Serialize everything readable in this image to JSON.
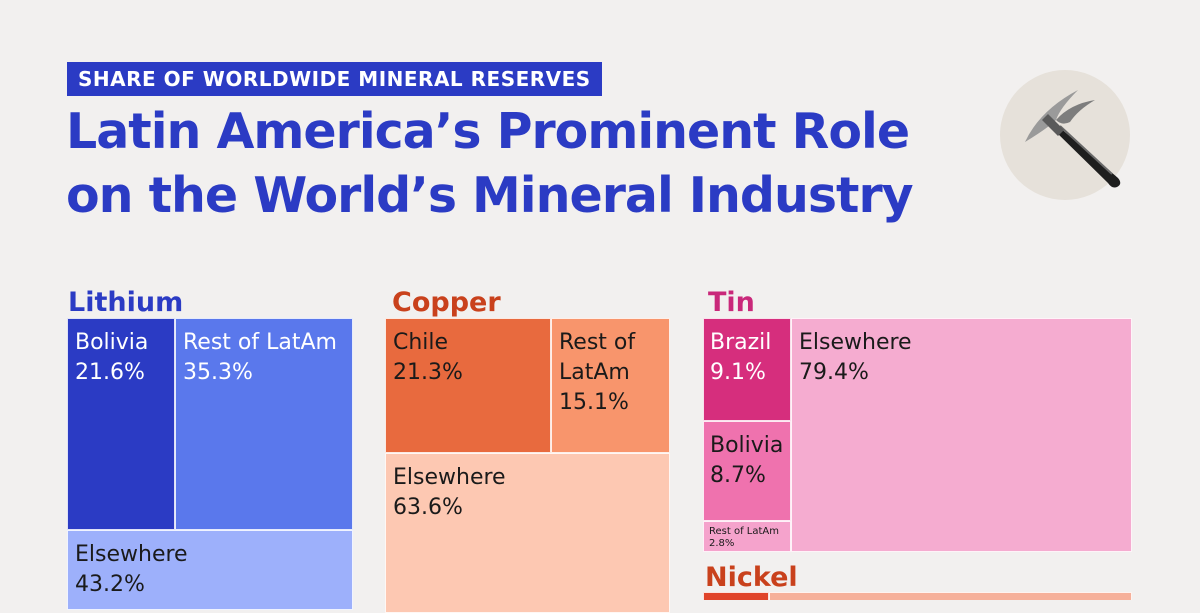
{
  "header": {
    "kicker": "SHARE OF WORLDWIDE MINERAL RESERVES",
    "title_line1": "Latin America’s Prominent Role",
    "title_line2": "on the World’s Mineral Industry",
    "icon": "pickaxe-icon"
  },
  "colors": {
    "title_blue": "#2b3bc4",
    "lithium": "#2b3bc4",
    "copper": "#c9411c",
    "tin": "#c9287a",
    "nickel": "#c9411c"
  },
  "chart_data": [
    {
      "type": "treemap",
      "title": "Lithium",
      "unit": "%",
      "items": [
        {
          "label": "Bolivia",
          "value": 21.6,
          "display": "21.6%",
          "color": "#2b3bc4"
        },
        {
          "label": "Rest of LatAm",
          "value": 35.3,
          "display": "35.3%",
          "color": "#5a78ec"
        },
        {
          "label": "Elsewhere",
          "value": 43.2,
          "display": "43.2%",
          "color": "#9db0fb"
        }
      ]
    },
    {
      "type": "treemap",
      "title": "Copper",
      "unit": "%",
      "items": [
        {
          "label": "Chile",
          "value": 21.3,
          "display": "21.3%",
          "color": "#e86a3e"
        },
        {
          "label": "Rest of LatAm",
          "label_lines": [
            "Rest of",
            "LatAm"
          ],
          "value": 15.1,
          "display": "15.1%",
          "color": "#f8956c"
        },
        {
          "label": "Elsewhere",
          "value": 63.6,
          "display": "63.6%",
          "color": "#fdc8b2"
        }
      ]
    },
    {
      "type": "treemap",
      "title": "Tin",
      "unit": "%",
      "items": [
        {
          "label": "Brazil",
          "value": 9.1,
          "display": "9.1%",
          "color": "#d62e7d"
        },
        {
          "label": "Bolivia",
          "value": 8.7,
          "display": "8.7%",
          "color": "#ef72ae"
        },
        {
          "label": "Rest of LatAm",
          "value": 2.8,
          "display": "2.8%",
          "color": "#f5a3cc"
        },
        {
          "label": "Elsewhere",
          "value": 79.4,
          "display": "79.4%",
          "color": "#f5acd0"
        }
      ]
    },
    {
      "type": "treemap",
      "title": "Nickel",
      "unit": "%",
      "items": [
        {
          "label": "",
          "value": null,
          "display": "",
          "color": "#e0442a"
        },
        {
          "label": "",
          "value": null,
          "display": "",
          "color": "#f6b09a"
        }
      ]
    }
  ]
}
